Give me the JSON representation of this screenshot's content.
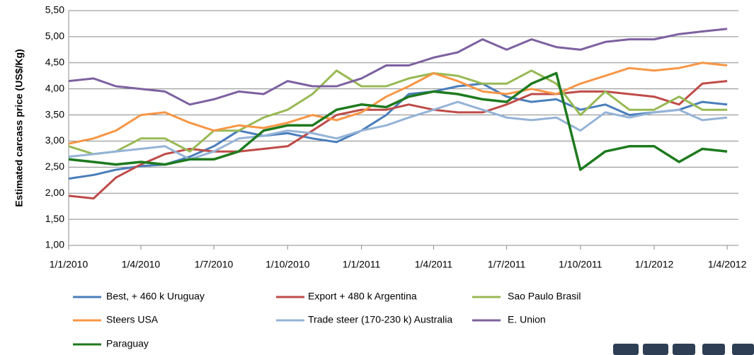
{
  "chart_data": {
    "type": "line",
    "y_label": "Estimated carcass price (US$/Kg)",
    "x": [
      "1/1/2010",
      "1/2/2010",
      "1/3/2010",
      "1/4/2010",
      "1/5/2010",
      "1/6/2010",
      "1/7/2010",
      "1/8/2010",
      "1/9/2010",
      "1/10/2010",
      "1/11/2010",
      "1/12/2010",
      "1/1/2011",
      "1/2/2011",
      "1/3/2011",
      "1/4/2011",
      "1/5/2011",
      "1/6/2011",
      "1/7/2011",
      "1/8/2011",
      "1/9/2011",
      "1/10/2011",
      "1/11/2011",
      "1/12/2011",
      "1/1/2012",
      "1/2/2012",
      "1/3/2012",
      "1/4/2012"
    ],
    "xlim": [
      "1/1/2010",
      "15/4/2012"
    ],
    "xticks": [
      "1/1/2010",
      "1/4/2010",
      "1/7/2010",
      "1/10/2010",
      "1/1/2011",
      "1/4/2011",
      "1/7/2011",
      "1/10/2011",
      "1/1/2012",
      "1/4/2012"
    ],
    "ylim": [
      1,
      5.5
    ],
    "yticks": [
      {
        "value": 1,
        "label": "1,00"
      },
      {
        "value": 1.5,
        "label": "1,50"
      },
      {
        "value": 2,
        "label": "2,00"
      },
      {
        "value": 2.5,
        "label": "2,50"
      },
      {
        "value": 3,
        "label": "3,00"
      },
      {
        "value": 3.5,
        "label": "3,50"
      },
      {
        "value": 4,
        "label": "4,00"
      },
      {
        "value": 4.5,
        "label": "4,50"
      },
      {
        "value": 5,
        "label": "5,00"
      },
      {
        "value": 5.5,
        "label": "5,50"
      }
    ],
    "grid": true,
    "series": [
      {
        "name": "Best, + 460 k Uruguay",
        "color": "#4a7ebb",
        "values": [
          2.28,
          2.35,
          2.45,
          2.52,
          2.55,
          2.7,
          2.9,
          3.2,
          3.1,
          3.15,
          3.05,
          2.98,
          3.2,
          3.5,
          3.9,
          3.95,
          4.05,
          4.1,
          3.85,
          3.75,
          3.8,
          3.6,
          3.7,
          3.5,
          3.55,
          3.6,
          3.75,
          3.7
        ]
      },
      {
        "name": "Export + 480 k Argentina",
        "color": "#be4b48",
        "values": [
          1.95,
          1.9,
          2.3,
          2.55,
          2.75,
          2.85,
          2.8,
          2.8,
          2.85,
          2.9,
          3.2,
          3.5,
          3.6,
          3.6,
          3.7,
          3.6,
          3.55,
          3.55,
          3.7,
          3.9,
          3.9,
          3.95,
          3.95,
          3.9,
          3.85,
          3.7,
          4.1,
          4.15
        ]
      },
      {
        "name": "Sao Paulo Brasil",
        "color": "#98b954",
        "values": [
          2.9,
          2.75,
          2.8,
          3.05,
          3.05,
          2.8,
          3.2,
          3.2,
          3.45,
          3.6,
          3.9,
          4.35,
          4.05,
          4.05,
          4.2,
          4.3,
          4.25,
          4.1,
          4.1,
          4.35,
          4.1,
          3.5,
          3.95,
          3.6,
          3.6,
          3.85,
          3.6,
          3.6
        ]
      },
      {
        "name": "Steers USA",
        "color": "#f79646",
        "values": [
          2.95,
          3.05,
          3.2,
          3.5,
          3.55,
          3.35,
          3.2,
          3.3,
          3.25,
          3.35,
          3.5,
          3.4,
          3.55,
          3.85,
          4.05,
          4.3,
          4.15,
          3.95,
          3.9,
          4.0,
          3.9,
          4.1,
          4.25,
          4.4,
          4.35,
          4.4,
          4.5,
          4.45
        ]
      },
      {
        "name": "Trade steer (170-230 k) Australia",
        "color": "#95b3d7",
        "values": [
          2.7,
          2.75,
          2.8,
          2.85,
          2.9,
          2.65,
          2.8,
          3.05,
          3.1,
          3.2,
          3.15,
          3.05,
          3.2,
          3.3,
          3.45,
          3.6,
          3.75,
          3.6,
          3.45,
          3.4,
          3.45,
          3.2,
          3.55,
          3.45,
          3.55,
          3.6,
          3.4,
          3.45
        ]
      },
      {
        "name": "E. Union",
        "color": "#7d60a0",
        "values": [
          4.15,
          4.2,
          4.05,
          4.0,
          3.95,
          3.7,
          3.8,
          3.95,
          3.9,
          4.15,
          4.05,
          4.05,
          4.2,
          4.45,
          4.45,
          4.6,
          4.7,
          4.95,
          4.75,
          4.95,
          4.8,
          4.75,
          4.9,
          4.95,
          4.95,
          5.05,
          5.1,
          5.15
        ]
      },
      {
        "name": "Paraguay",
        "color": "#1e7a1e",
        "values": [
          2.65,
          2.6,
          2.55,
          2.6,
          2.55,
          2.65,
          2.65,
          2.8,
          3.2,
          3.3,
          3.3,
          3.6,
          3.7,
          3.65,
          3.85,
          3.95,
          3.9,
          3.8,
          3.75,
          4.1,
          4.3,
          2.45,
          2.8,
          2.9,
          2.9,
          2.6,
          2.85,
          2.8
        ]
      }
    ]
  }
}
